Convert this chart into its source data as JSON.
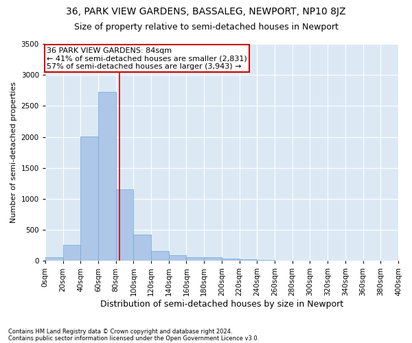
{
  "title": "36, PARK VIEW GARDENS, BASSALEG, NEWPORT, NP10 8JZ",
  "subtitle": "Size of property relative to semi-detached houses in Newport",
  "xlabel": "Distribution of semi-detached houses by size in Newport",
  "ylabel": "Number of semi-detached properties",
  "footnote1": "Contains HM Land Registry data © Crown copyright and database right 2024.",
  "footnote2": "Contains public sector information licensed under the Open Government Licence v3.0.",
  "annotation_title": "36 PARK VIEW GARDENS: 84sqm",
  "annotation_line1": "← 41% of semi-detached houses are smaller (2,831)",
  "annotation_line2": "57% of semi-detached houses are larger (3,943) →",
  "property_size": 84,
  "bar_color": "#aec6e8",
  "bar_edge_color": "#6aaad4",
  "annotation_box_color": "#ffffff",
  "annotation_box_edge": "#cc0000",
  "vline_color": "#cc0000",
  "bin_edges": [
    0,
    20,
    40,
    60,
    80,
    100,
    120,
    140,
    160,
    180,
    200,
    220,
    240,
    260,
    280,
    300,
    320,
    340,
    360,
    380,
    400
  ],
  "bar_heights": [
    55,
    260,
    2010,
    2730,
    1150,
    425,
    160,
    90,
    65,
    55,
    35,
    30,
    20,
    10,
    5,
    3,
    2,
    1,
    0,
    0
  ],
  "ylim": [
    0,
    3500
  ],
  "yticks": [
    0,
    500,
    1000,
    1500,
    2000,
    2500,
    3000,
    3500
  ],
  "background_color": "#dce9f5",
  "grid_color": "#ffffff",
  "fig_background": "#ffffff",
  "title_fontsize": 10,
  "subtitle_fontsize": 9,
  "xlabel_fontsize": 9,
  "ylabel_fontsize": 8,
  "tick_fontsize": 7.5,
  "annotation_fontsize": 8,
  "footnote_fontsize": 6
}
